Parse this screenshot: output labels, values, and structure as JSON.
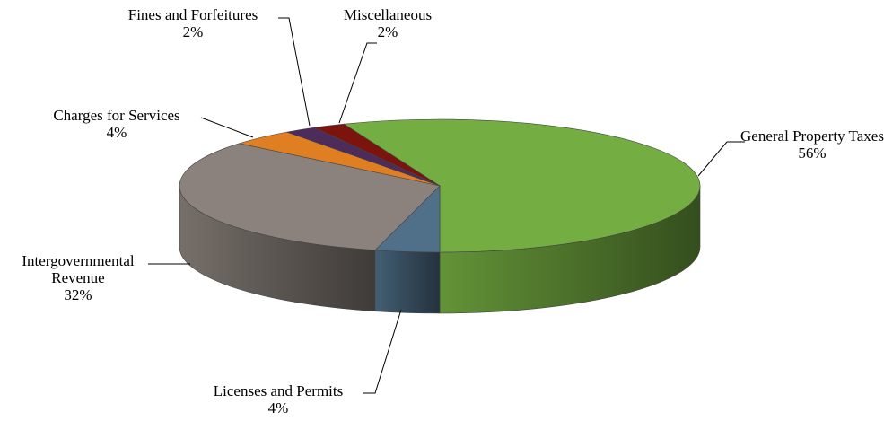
{
  "chart_data": {
    "type": "pie",
    "three_d": true,
    "categories": [
      "General Property Taxes",
      "Licenses and Permits",
      "Intergovernmental Revenue",
      "Charges for Services",
      "Fines and Forfeitures",
      "Miscellaneous"
    ],
    "values": [
      56,
      4,
      32,
      4,
      2,
      2
    ],
    "value_labels": [
      "56%",
      "4%",
      "32%",
      "4%",
      "2%",
      "2%"
    ],
    "colors": [
      "#74ad41",
      "#4f7088",
      "#8b827d",
      "#e07e22",
      "#4d2b5b",
      "#7a140d"
    ]
  }
}
